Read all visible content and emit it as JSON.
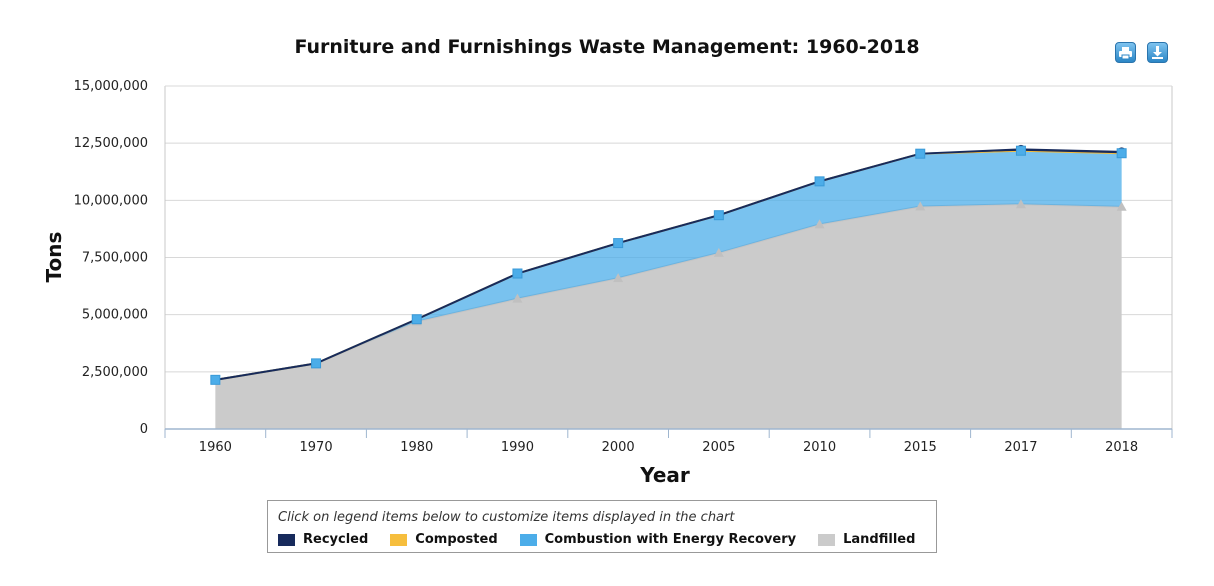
{
  "export": {
    "print_icon": "printer-icon",
    "download_icon": "download-icon"
  },
  "legend": {
    "hint": "Click on legend items below to customize items displayed in the chart"
  },
  "chart_data": {
    "type": "area",
    "title": "Furniture and Furnishings Waste Management: 1960-2018",
    "xlabel": "Year",
    "ylabel": "Tons",
    "categories": [
      "1960",
      "1970",
      "1980",
      "1990",
      "2000",
      "2005",
      "2010",
      "2015",
      "2017",
      "2018"
    ],
    "ylim": [
      0,
      15000000
    ],
    "yticks": [
      0,
      2500000,
      5000000,
      7500000,
      10000000,
      12500000,
      15000000
    ],
    "ytick_labels": [
      "0",
      "2,500,000",
      "5,000,000",
      "7,500,000",
      "10,000,000",
      "12,500,000",
      "15,000,000"
    ],
    "stacked": true,
    "grid": true,
    "legend_position": "bottom",
    "series": [
      {
        "name": "Recycled",
        "color": "#172a5c",
        "values": [
          0,
          0,
          0,
          0,
          0,
          0,
          0,
          0,
          60000,
          60000
        ]
      },
      {
        "name": "Composted",
        "color": "#f6be3d",
        "values": [
          0,
          0,
          0,
          0,
          0,
          0,
          0,
          0,
          0,
          0
        ]
      },
      {
        "name": "Combustion with Energy Recovery",
        "color": "#4cade9",
        "values": [
          0,
          0,
          100000,
          1100000,
          1530000,
          1650000,
          1880000,
          2310000,
          2340000,
          2340000
        ]
      },
      {
        "name": "Landfilled",
        "color": "#cbcbcb",
        "values": [
          2150000,
          2870000,
          4700000,
          5700000,
          6600000,
          7700000,
          8950000,
          9730000,
          9830000,
          9720000
        ]
      }
    ]
  }
}
